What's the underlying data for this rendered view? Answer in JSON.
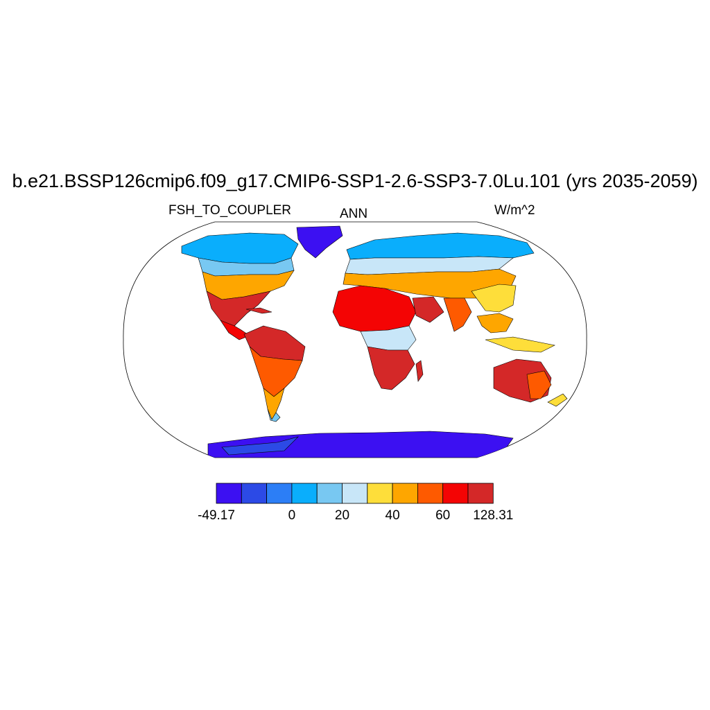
{
  "title": "b.e21.BSSP126cmip6.f09_g17.CMIP6-SSP1-2.6-SSP3-7.0Lu.101 (yrs 2035-2059)",
  "subtitle_left": "FSH_TO_COUPLER",
  "subtitle_center": "ANN",
  "subtitle_right": "W/m^2",
  "colors": {
    "ocean": "#ffffff",
    "outline": "#000000",
    "levels": [
      "#3c10f2",
      "#2c4ae6",
      "#2c7ef6",
      "#0aaefc",
      "#78c8f2",
      "#c8e6f8",
      "#fede3a",
      "#fea600",
      "#fe5a00",
      "#f40404",
      "#d42828"
    ]
  },
  "colorbar": {
    "labels": [
      "-49.17",
      "0",
      "20",
      "40",
      "60",
      "128.31"
    ],
    "label_positions": [
      0,
      3,
      5,
      7,
      9,
      11
    ]
  },
  "map_data": {
    "projection": "Robinson",
    "variable": "FSH_TO_COUPLER",
    "season": "ANN",
    "units": "W/m^2",
    "range": [
      -49.17,
      128.31
    ]
  }
}
